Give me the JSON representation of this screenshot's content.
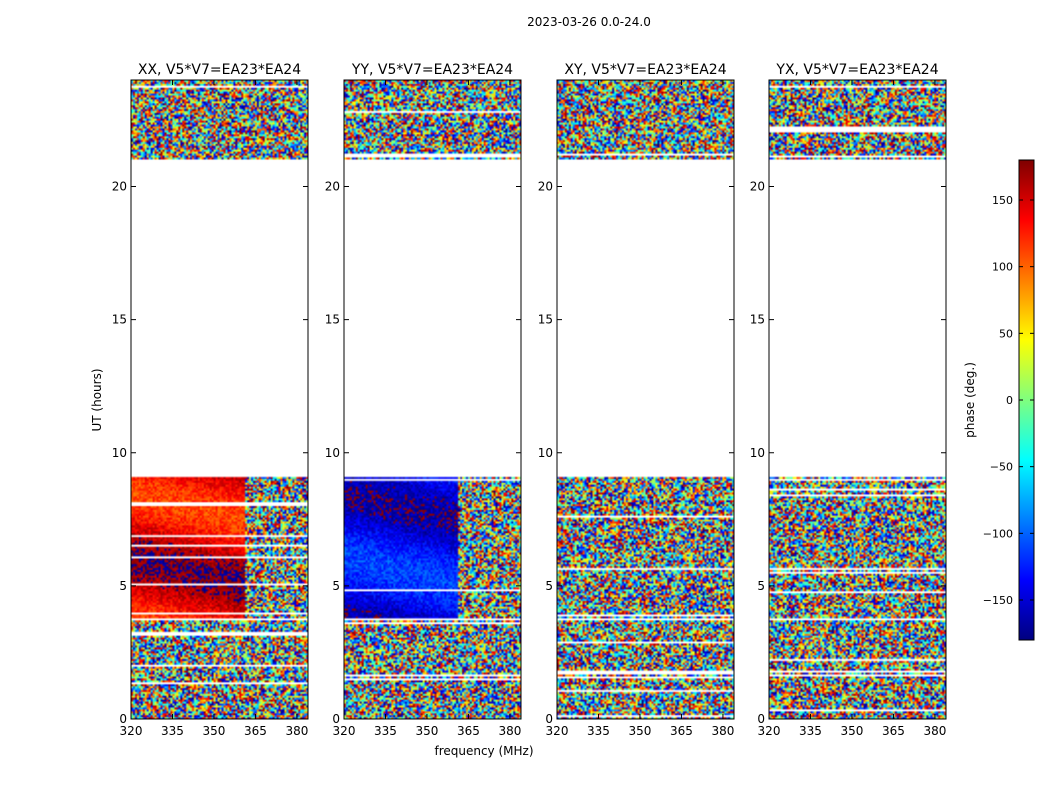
{
  "figure": {
    "suptitle": "2023-03-26 0.0-24.0",
    "xlabel": "frequency (MHz)",
    "ylabel": "UT (hours)"
  },
  "colorbar": {
    "label": "phase (deg.)",
    "range": [
      -180,
      180
    ],
    "ticks": [
      -150,
      -100,
      -50,
      0,
      50,
      100,
      150
    ],
    "tick_labels": [
      "−150",
      "−100",
      "−50",
      "0",
      "50",
      "100",
      "150"
    ],
    "colormap": "jet",
    "colors": [
      "#00007f",
      "#0000ff",
      "#007fff",
      "#00ffff",
      "#7fff7f",
      "#ffff00",
      "#ff7f00",
      "#ff0000",
      "#7f0000"
    ]
  },
  "chart_data": [
    {
      "type": "heatmap",
      "title": "XX, V5*V7=EA23*EA24",
      "x_ticks": [
        320,
        335,
        350,
        365,
        380
      ],
      "x_tick_labels": [
        "320",
        "335",
        "350",
        "365",
        "380"
      ],
      "xlim": [
        320,
        384
      ],
      "y_ticks": [
        0,
        5,
        10,
        15,
        20
      ],
      "y_tick_labels": [
        "0",
        "5",
        "10",
        "15",
        "20"
      ],
      "ylim": [
        0,
        24
      ],
      "data_rows_hours": [
        [
          0,
          3.7
        ],
        [
          3.8,
          9.1
        ],
        [
          21.0,
          24.0
        ]
      ],
      "description_phase": {
        "coherent_until_mhz": 361,
        "low_band_phase_deg": [
          110,
          180
        ]
      }
    },
    {
      "type": "heatmap",
      "title": "YY, V5*V7=EA23*EA24",
      "x_ticks": [
        320,
        335,
        350,
        365,
        380
      ],
      "x_tick_labels": [
        "320",
        "335",
        "350",
        "365",
        "380"
      ],
      "xlim": [
        320,
        384
      ],
      "y_ticks": [
        0,
        5,
        10,
        15,
        20
      ],
      "y_tick_labels": [
        "0",
        "5",
        "10",
        "15",
        "20"
      ],
      "ylim": [
        0,
        24
      ],
      "data_rows_hours": [
        [
          0,
          3.7
        ],
        [
          3.8,
          9.1
        ],
        [
          21.0,
          24.0
        ]
      ],
      "description_phase": {
        "coherent_until_mhz": 361,
        "low_band_phase_deg": [
          -170,
          -110
        ]
      }
    },
    {
      "type": "heatmap",
      "title": "XY, V5*V7=EA23*EA24",
      "x_ticks": [
        320,
        335,
        350,
        365,
        380
      ],
      "x_tick_labels": [
        "320",
        "335",
        "350",
        "365",
        "380"
      ],
      "xlim": [
        320,
        384
      ],
      "y_ticks": [
        0,
        5,
        10,
        15,
        20
      ],
      "y_tick_labels": [
        "0",
        "5",
        "10",
        "15",
        "20"
      ],
      "ylim": [
        0,
        24
      ],
      "data_rows_hours": [
        [
          0,
          3.7
        ],
        [
          3.8,
          9.1
        ],
        [
          21.0,
          24.0
        ]
      ],
      "description_phase": {
        "coherent_until_mhz": 320,
        "low_band_phase_deg": [
          -180,
          180
        ]
      }
    },
    {
      "type": "heatmap",
      "title": "YX, V5*V7=EA23*EA24",
      "x_ticks": [
        320,
        335,
        350,
        365,
        380
      ],
      "x_tick_labels": [
        "320",
        "335",
        "350",
        "365",
        "380"
      ],
      "xlim": [
        320,
        384
      ],
      "y_ticks": [
        0,
        5,
        10,
        15,
        20
      ],
      "y_tick_labels": [
        "0",
        "5",
        "10",
        "15",
        "20"
      ],
      "ylim": [
        0,
        24
      ],
      "data_rows_hours": [
        [
          0,
          3.7
        ],
        [
          3.8,
          9.1
        ],
        [
          21.0,
          24.0
        ]
      ],
      "description_phase": {
        "coherent_until_mhz": 320,
        "low_band_phase_deg": [
          -180,
          180
        ]
      }
    }
  ]
}
